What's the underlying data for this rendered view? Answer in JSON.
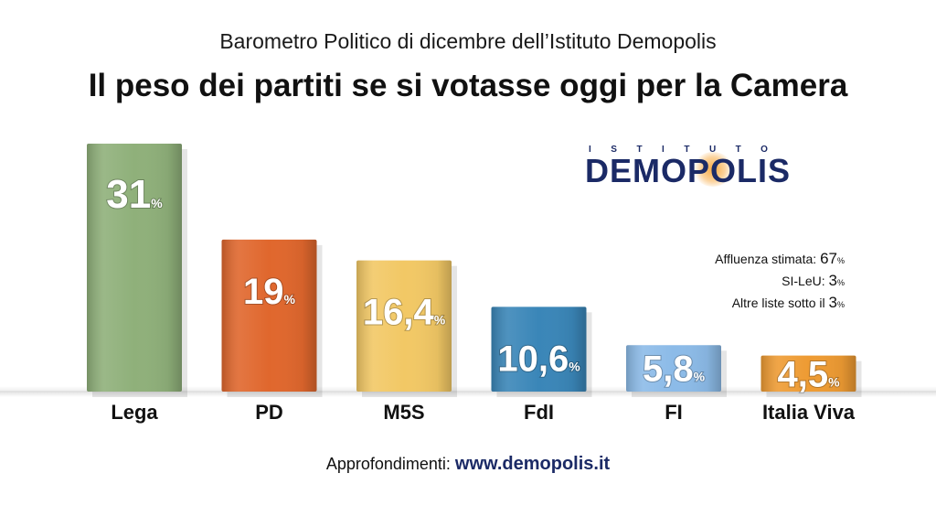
{
  "header": {
    "subtitle": "Barometro Politico di dicembre dell’Istituto Demopolis",
    "title": "Il peso dei partiti se si votasse oggi per la Camera"
  },
  "logo": {
    "top": "ISTITUTO",
    "main": "DEMOPOLIS"
  },
  "notes": [
    {
      "label": "Affluenza stimata: ",
      "value": "67",
      "unit": "%"
    },
    {
      "label": "SI-LeU: ",
      "value": "3",
      "unit": "%"
    },
    {
      "label": "Altre liste sotto il ",
      "value": "3",
      "unit": "%"
    }
  ],
  "footer": {
    "label": "Approfondimenti: ",
    "link": "www.demopolis.it"
  },
  "chart_data": {
    "type": "bar",
    "categories": [
      "Lega",
      "PD",
      "M5S",
      "FdI",
      "FI",
      "Italia Viva"
    ],
    "values": [
      31,
      19,
      16.4,
      10.6,
      5.8,
      4.5
    ],
    "labels": [
      "31",
      "19",
      "16,4",
      "10,6",
      "5,8",
      "4,5"
    ],
    "unit": "%",
    "colors": [
      "#8fb07a",
      "#e0672d",
      "#f2c865",
      "#3a86b8",
      "#8cbbe8",
      "#ee9b33"
    ],
    "ylim": [
      0,
      31
    ],
    "grid": false
  }
}
